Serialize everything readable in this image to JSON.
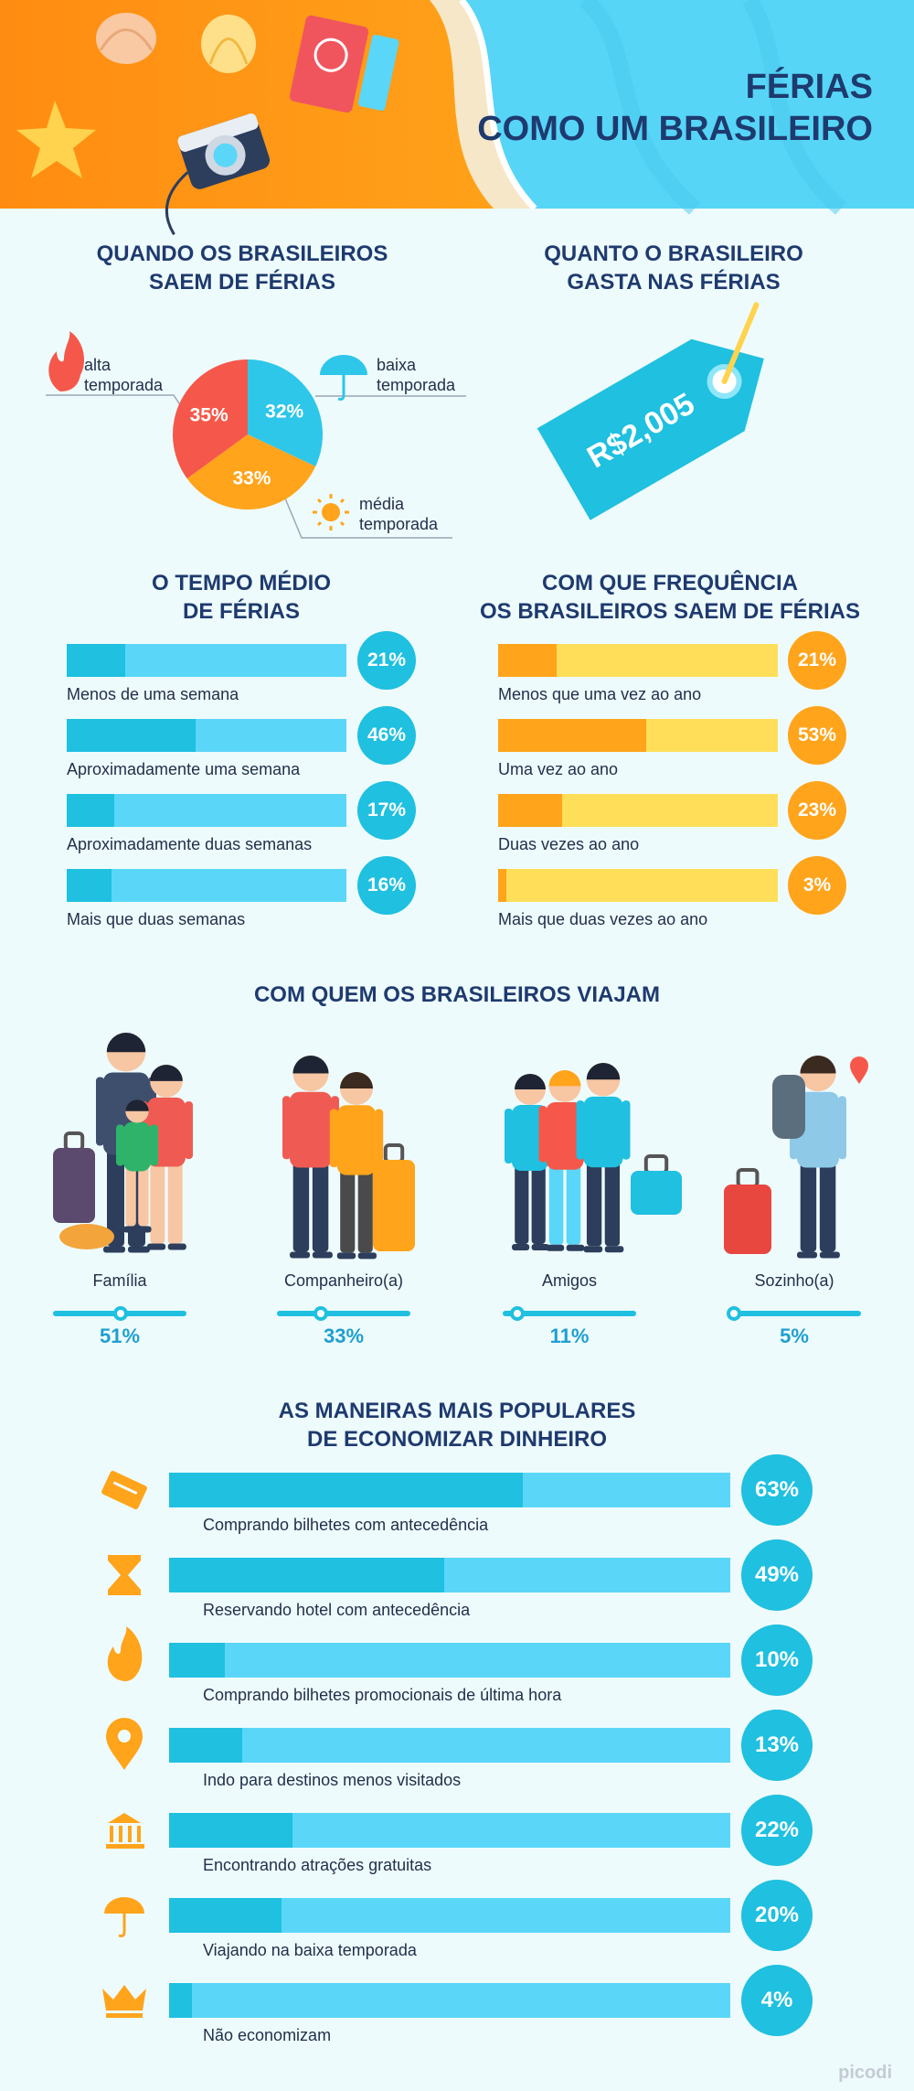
{
  "header": {
    "title": [
      "FÉRIAS",
      "COMO UM BRASILEIRO"
    ]
  },
  "spending": {
    "title": [
      "QUANTO O BRASILEIRO",
      "GASTA NAS FÉRIAS"
    ],
    "amount": "R$2,005"
  },
  "chart_data": [
    {
      "type": "pie",
      "title": [
        "QUANDO OS BRASILEIROS",
        "SAEM DE FÉRIAS"
      ],
      "categories": [
        "baixa temporada",
        "média temporada",
        "alta temporada"
      ],
      "values": [
        32,
        33,
        35
      ],
      "value_labels": [
        "32%",
        "33%",
        "35%"
      ],
      "colors": [
        "#2ec7ea",
        "#ffa41b",
        "#f5584a"
      ]
    },
    {
      "type": "bar",
      "title": [
        "O TEMPO MÉDIO",
        "DE FÉRIAS"
      ],
      "categories": [
        "Menos de uma semana",
        "Aproximadamente uma semana",
        "Aproximadamente duas semanas",
        "Mais que duas semanas"
      ],
      "values": [
        21,
        46,
        17,
        16
      ],
      "value_labels": [
        "21%",
        "46%",
        "17%",
        "16%"
      ],
      "xlim": [
        0,
        100
      ],
      "color": "#1fc0e0",
      "track_color": "#5ad6f8"
    },
    {
      "type": "bar",
      "title": [
        "COM QUE FREQUÊNCIA",
        "OS BRASILEIROS SAEM DE FÉRIAS"
      ],
      "categories": [
        "Menos que uma vez ao ano",
        "Uma vez ao ano",
        "Duas vezes ao ano",
        "Mais que duas vezes ao ano"
      ],
      "values": [
        21,
        53,
        23,
        3
      ],
      "value_labels": [
        "21%",
        "53%",
        "23%",
        "3%"
      ],
      "xlim": [
        0,
        100
      ],
      "color": "#ffa41b",
      "track_color": "#ffdf5a"
    },
    {
      "type": "slider",
      "title": [
        "COM QUEM OS BRASILEIROS VIAJAM"
      ],
      "categories": [
        "Família",
        "Companheiro(a)",
        "Amigos",
        "Sozinho(a)"
      ],
      "values": [
        51,
        33,
        11,
        5
      ],
      "value_labels": [
        "51%",
        "33%",
        "11%",
        "5%"
      ],
      "xlim": [
        0,
        100
      ],
      "color": "#1fc0e0"
    },
    {
      "type": "bar",
      "title": [
        "AS MANEIRAS MAIS POPULARES",
        "DE ECONOMIZAR DINHEIRO"
      ],
      "categories": [
        "Comprando bilhetes com antecedência",
        "Reservando hotel com antecedência",
        "Comprando bilhetes promocionais de última hora",
        "Indo para destinos menos visitados",
        "Encontrando atrações gratuitas",
        "Viajando na baixa temporada",
        "Não economizam"
      ],
      "values": [
        63,
        49,
        10,
        13,
        22,
        20,
        4
      ],
      "value_labels": [
        "63%",
        "49%",
        "10%",
        "13%",
        "22%",
        "20%",
        "4%"
      ],
      "xlim": [
        0,
        100
      ],
      "color": "#1fc0e0",
      "track_color": "#5ad6f8"
    }
  ],
  "footer": {
    "brand": "picodi"
  }
}
